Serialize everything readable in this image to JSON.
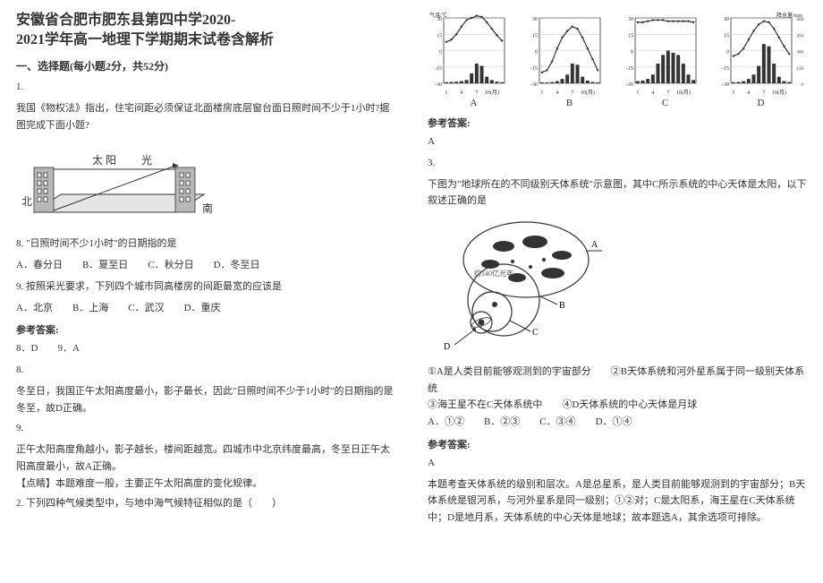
{
  "title_line1": "安徽省合肥市肥东县第四中学2020-",
  "title_line2": "2021学年高一地理下学期期末试卷含解析",
  "section1": "一、选择题(每小题2分，共52分)",
  "q1": {
    "n": "1.",
    "text": "我国《物权法》指出，住宅间距必须保证北面楼房底层窗台面日照时间不少于1小时?据图完成下面小题?",
    "diagram": {
      "sun": "太  阳",
      "light": "光",
      "north": "北",
      "south": "南",
      "stroke": "#333",
      "fill": "#d0d0d0"
    }
  },
  "q8": {
    "n": "8.",
    "text": "\"日照时间不少1小时\"的日期指的是",
    "opts": "A．春分日　　B．夏至日　　C．秋分日　　D．冬至日"
  },
  "q9": {
    "n": "9.",
    "text": "按照采光要求，下列四个城市同高楼房的间距最宽的应该是",
    "opts": "A．北京　　B．上海　　C．武汉　　D．重庆"
  },
  "ans_label": "参考答案:",
  "ans89": "8．D　　9．A",
  "exp8n": "8.",
  "exp8": "冬至日，我国正午太阳高度最小，影子最长，因此\"日照时间不少于1小时\"的日期指的是冬至，故D正确。",
  "exp9n": "9.",
  "exp9": "正午太阳高度角越小，影子越长，楼间距越宽。四城市中北京纬度最高，冬至日正午太阳高度最小，故A正确。",
  "tip": "【点睛】本题难度一般，主要正午太阳高度的变化规律。",
  "q2": {
    "n": "2.",
    "text": "下列四种气候类型中，与地中海气候特征相似的是（　　）"
  },
  "charts": {
    "ylabel": "气温/℃",
    "y2label": "降水量/mm",
    "xticks": [
      "1",
      "4",
      "7",
      "10(月)"
    ],
    "ylim": [
      -30,
      30
    ],
    "ytick_step": 15,
    "plim": [
      0,
      600
    ],
    "ptick_step": 150,
    "line_color": "#333",
    "bar_color": "#333",
    "grid_color": "#bbb",
    "A": {
      "label": "A",
      "temp": [
        8,
        10,
        15,
        22,
        28,
        30,
        32,
        31,
        26,
        20,
        14,
        9
      ],
      "prec": [
        10,
        12,
        15,
        20,
        30,
        90,
        180,
        160,
        60,
        30,
        15,
        10
      ]
    },
    "B": {
      "label": "B",
      "temp": [
        -20,
        -18,
        -10,
        2,
        12,
        18,
        22,
        20,
        12,
        2,
        -8,
        -18
      ],
      "prec": [
        8,
        8,
        12,
        20,
        40,
        80,
        180,
        170,
        60,
        25,
        12,
        8
      ]
    },
    "C": {
      "label": "C",
      "temp": [
        26,
        26,
        27,
        28,
        28,
        28,
        27,
        27,
        27,
        27,
        27,
        26
      ],
      "prec": [
        20,
        25,
        40,
        80,
        180,
        260,
        300,
        280,
        260,
        180,
        80,
        30
      ]
    },
    "D": {
      "label": "D",
      "temp": [
        -5,
        -3,
        2,
        10,
        18,
        24,
        27,
        26,
        20,
        12,
        4,
        -3
      ],
      "prec": [
        10,
        12,
        20,
        40,
        80,
        160,
        360,
        340,
        180,
        60,
        20,
        12
      ]
    }
  },
  "ans2": "A",
  "q3": {
    "n": "3.",
    "text": "下图为\"地球所在的不同级别天体系统\"示意图，其中C所示系统的中心天体是太阳，以下叙述正确的是",
    "diagram": {
      "stroke": "#333",
      "fillA": "#fff",
      "circ": "#333"
    },
    "labels": {
      "A": "A",
      "B": "B",
      "C": "C",
      "D": "D"
    }
  },
  "q3opts1": "①A是人类目前能够观测到的宇宙部分　　②B天体系统和河外星系属于同一级别天体系统",
  "q3opts2": "③海王星不在C天体系统中　　④D天体系统的中心天体是月球",
  "q3choices": "A．①②　　B．②③　　C．③④　　D．①④",
  "ans3": "A",
  "exp3": "本题考查天体系统的级别和层次。A是总星系，是人类目前能够观测到的宇宙部分；B天体系统是银河系，与河外星系是同一级别；①②对；C是太阳系，海王星在C天体系统中；D是地月系，天体系统的中心天体是地球；故本题选A，其余选项可排除。"
}
